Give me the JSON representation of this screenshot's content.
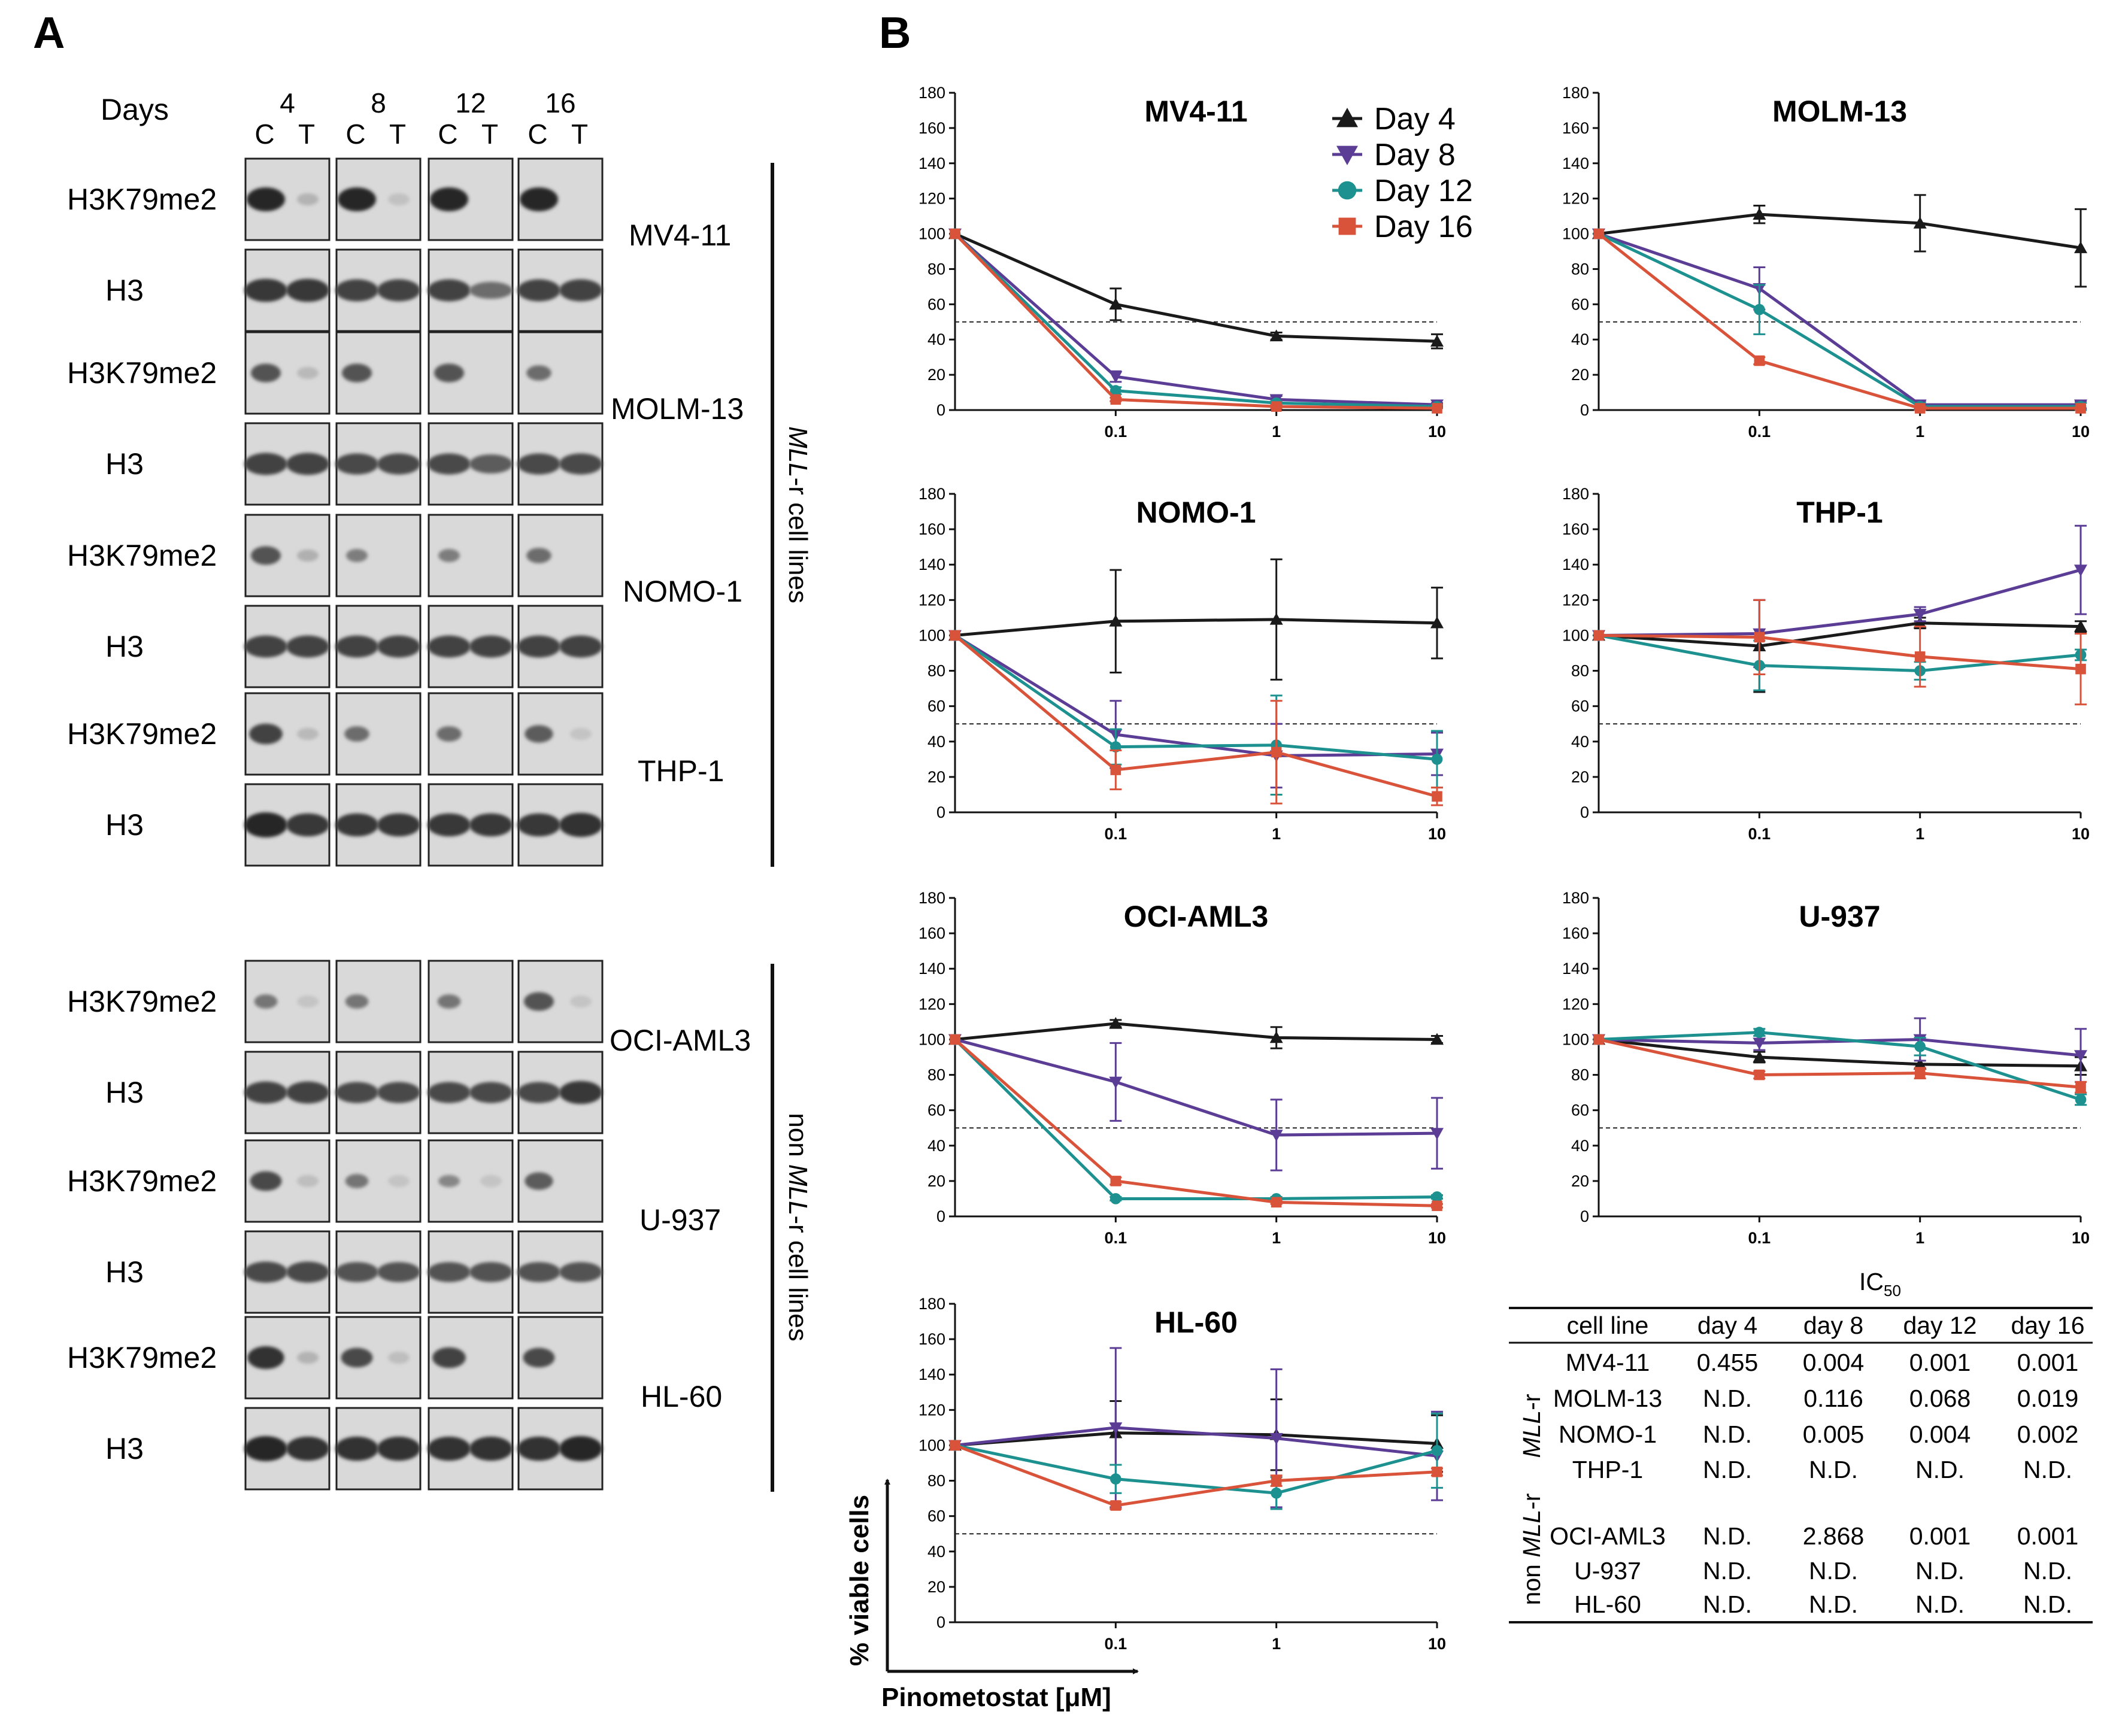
{
  "panel_labels": {
    "a": "A",
    "b": "B"
  },
  "blot": {
    "days_label": "Days",
    "days": [
      "4",
      "8",
      "12",
      "16"
    ],
    "ct": [
      "C",
      "T"
    ],
    "antibodies": {
      "mark": "H3K79me2",
      "total": "H3"
    },
    "lines": [
      {
        "name": "MV4-11",
        "mark": [
          1.0,
          0.18,
          1.0,
          0.1,
          1.0,
          0.05,
          1.0,
          0.05
        ],
        "total": [
          0.9,
          0.9,
          0.85,
          0.85,
          0.85,
          0.6,
          0.85,
          0.85
        ]
      },
      {
        "name": "MOLM-13",
        "mark": [
          0.75,
          0.15,
          0.75,
          0.05,
          0.75,
          0.05,
          0.6,
          0.05
        ],
        "total": [
          0.85,
          0.85,
          0.8,
          0.8,
          0.8,
          0.7,
          0.8,
          0.8
        ]
      },
      {
        "name": "NOMO-1",
        "mark": [
          0.75,
          0.2,
          0.5,
          0.05,
          0.5,
          0.05,
          0.6,
          0.05
        ],
        "total": [
          0.85,
          0.85,
          0.85,
          0.85,
          0.85,
          0.85,
          0.85,
          0.85
        ]
      },
      {
        "name": "THP-1",
        "mark": [
          0.85,
          0.15,
          0.6,
          0.05,
          0.6,
          0.05,
          0.7,
          0.08
        ],
        "total": [
          1.0,
          0.9,
          0.9,
          0.9,
          0.9,
          0.9,
          0.9,
          0.95
        ]
      },
      {
        "name": "OCI-AML3",
        "mark": [
          0.55,
          0.08,
          0.55,
          0.05,
          0.55,
          0.05,
          0.75,
          0.08
        ],
        "total": [
          0.85,
          0.85,
          0.8,
          0.8,
          0.8,
          0.8,
          0.8,
          0.9
        ]
      },
      {
        "name": "U-937",
        "mark": [
          0.8,
          0.12,
          0.55,
          0.08,
          0.45,
          0.08,
          0.7,
          0.05
        ],
        "total": [
          0.8,
          0.8,
          0.75,
          0.75,
          0.75,
          0.75,
          0.75,
          0.75
        ]
      },
      {
        "name": "HL-60",
        "mark": [
          0.95,
          0.18,
          0.8,
          0.12,
          0.85,
          0.05,
          0.8,
          0.05
        ],
        "total": [
          1.0,
          0.95,
          0.95,
          0.95,
          0.95,
          0.95,
          0.95,
          1.0
        ]
      }
    ],
    "group_labels": {
      "mll": {
        "gene": "MLL",
        "suffix": "-r",
        "rest": " cell lines"
      },
      "non": {
        "prefix": "non ",
        "gene": "MLL",
        "suffix": "-r",
        "rest": " cell lines"
      }
    }
  },
  "legend": [
    "Day 4",
    "Day 8",
    "Day 12",
    "Day 16"
  ],
  "colors": {
    "day4": "#1a1a1a",
    "day8": "#5b3d96",
    "day12": "#1c9190",
    "day16": "#d9533a"
  },
  "axes": {
    "y_ticks": [
      "0",
      "20",
      "40",
      "60",
      "80",
      "100",
      "120",
      "140",
      "160",
      "180"
    ],
    "x_ticks": [
      "0.1",
      "1",
      "10"
    ],
    "y_title": "% viable cells",
    "x_title": "Pinometostat [μM]"
  },
  "chart_data": [
    {
      "type": "line",
      "title": "MV4-11",
      "x": [
        0.01,
        0.1,
        1,
        10
      ],
      "xscale": "log",
      "ylim": [
        0,
        180
      ],
      "reference_line": 50,
      "series": [
        {
          "name": "Day 4",
          "values": [
            100,
            60,
            42,
            39
          ],
          "err": [
            0,
            9,
            2,
            4
          ]
        },
        {
          "name": "Day 8",
          "values": [
            100,
            19,
            6,
            3
          ],
          "err": [
            0,
            3,
            2,
            1
          ]
        },
        {
          "name": "Day 12",
          "values": [
            100,
            11,
            4,
            2
          ],
          "err": [
            0,
            2,
            1,
            1
          ]
        },
        {
          "name": "Day 16",
          "values": [
            100,
            6,
            2,
            1
          ],
          "err": [
            0,
            1,
            1,
            0
          ]
        }
      ]
    },
    {
      "type": "line",
      "title": "MOLM-13",
      "x": [
        0.01,
        0.1,
        1,
        10
      ],
      "xscale": "log",
      "ylim": [
        0,
        180
      ],
      "reference_line": 50,
      "series": [
        {
          "name": "Day 4",
          "values": [
            100,
            111,
            106,
            92
          ],
          "err": [
            0,
            5,
            16,
            22
          ]
        },
        {
          "name": "Day 8",
          "values": [
            100,
            69,
            3,
            3
          ],
          "err": [
            0,
            12,
            2,
            2
          ]
        },
        {
          "name": "Day 12",
          "values": [
            100,
            57,
            2,
            2
          ],
          "err": [
            0,
            14,
            2,
            2
          ]
        },
        {
          "name": "Day 16",
          "values": [
            100,
            28,
            1,
            1
          ],
          "err": [
            0,
            2,
            1,
            0
          ]
        }
      ]
    },
    {
      "type": "line",
      "title": "NOMO-1",
      "x": [
        0.01,
        0.1,
        1,
        10
      ],
      "xscale": "log",
      "ylim": [
        0,
        180
      ],
      "reference_line": 50,
      "series": [
        {
          "name": "Day 4",
          "values": [
            100,
            108,
            109,
            107
          ],
          "err": [
            0,
            29,
            34,
            20
          ]
        },
        {
          "name": "Day 8",
          "values": [
            100,
            44,
            32,
            33
          ],
          "err": [
            0,
            19,
            18,
            12
          ]
        },
        {
          "name": "Day 12",
          "values": [
            100,
            37,
            38,
            30
          ],
          "err": [
            0,
            10,
            28,
            16
          ]
        },
        {
          "name": "Day 16",
          "values": [
            100,
            24,
            34,
            9
          ],
          "err": [
            0,
            11,
            29,
            5
          ]
        }
      ]
    },
    {
      "type": "line",
      "title": "THP-1",
      "x": [
        0.01,
        0.1,
        1,
        10
      ],
      "xscale": "log",
      "ylim": [
        0,
        180
      ],
      "reference_line": 50,
      "series": [
        {
          "name": "Day 4",
          "values": [
            100,
            94,
            107,
            105
          ],
          "err": [
            0,
            26,
            3,
            3
          ]
        },
        {
          "name": "Day 8",
          "values": [
            100,
            101,
            112,
            137
          ],
          "err": [
            0,
            19,
            4,
            25
          ]
        },
        {
          "name": "Day 12",
          "values": [
            100,
            83,
            80,
            89
          ],
          "err": [
            0,
            14,
            5,
            3
          ]
        },
        {
          "name": "Day 16",
          "values": [
            100,
            99,
            88,
            81
          ],
          "err": [
            0,
            21,
            17,
            20
          ]
        }
      ]
    },
    {
      "type": "line",
      "title": "OCI-AML3",
      "x": [
        0.01,
        0.1,
        1,
        10
      ],
      "xscale": "log",
      "ylim": [
        0,
        180
      ],
      "reference_line": 50,
      "series": [
        {
          "name": "Day 4",
          "values": [
            100,
            109,
            101,
            100
          ],
          "err": [
            0,
            2,
            6,
            2
          ]
        },
        {
          "name": "Day 8",
          "values": [
            100,
            76,
            46,
            47
          ],
          "err": [
            0,
            22,
            20,
            20
          ]
        },
        {
          "name": "Day 12",
          "values": [
            100,
            10,
            10,
            11
          ],
          "err": [
            0,
            1,
            1,
            1
          ]
        },
        {
          "name": "Day 16",
          "values": [
            100,
            20,
            8,
            6
          ],
          "err": [
            0,
            2,
            1,
            1
          ]
        }
      ]
    },
    {
      "type": "line",
      "title": "U-937",
      "x": [
        0.01,
        0.1,
        1,
        10
      ],
      "xscale": "log",
      "ylim": [
        0,
        180
      ],
      "reference_line": 50,
      "series": [
        {
          "name": "Day 4",
          "values": [
            100,
            90,
            86,
            85
          ],
          "err": [
            0,
            3,
            5,
            5
          ]
        },
        {
          "name": "Day 8",
          "values": [
            100,
            98,
            100,
            91
          ],
          "err": [
            0,
            4,
            12,
            15
          ]
        },
        {
          "name": "Day 12",
          "values": [
            100,
            104,
            96,
            66
          ],
          "err": [
            0,
            2,
            5,
            3
          ]
        },
        {
          "name": "Day 16",
          "values": [
            100,
            80,
            81,
            73
          ],
          "err": [
            0,
            2,
            3,
            3
          ]
        }
      ]
    },
    {
      "type": "line",
      "title": "HL-60",
      "x": [
        0.01,
        0.1,
        1,
        10
      ],
      "xscale": "log",
      "ylim": [
        0,
        180
      ],
      "reference_line": 50,
      "series": [
        {
          "name": "Day 4",
          "values": [
            100,
            107,
            106,
            101
          ],
          "err": [
            0,
            18,
            20,
            16
          ]
        },
        {
          "name": "Day 8",
          "values": [
            100,
            110,
            104,
            94
          ],
          "err": [
            0,
            45,
            39,
            25
          ]
        },
        {
          "name": "Day 12",
          "values": [
            100,
            81,
            73,
            97
          ],
          "err": [
            0,
            8,
            9,
            21
          ]
        },
        {
          "name": "Day 16",
          "values": [
            100,
            66,
            80,
            85
          ],
          "err": [
            0,
            2,
            3,
            2
          ]
        }
      ]
    }
  ],
  "ic50_table": {
    "title_main": "IC",
    "title_sub": "50",
    "columns": [
      "cell line",
      "day 4",
      "day 8",
      "day 12",
      "day 16"
    ],
    "groups": [
      {
        "label": {
          "gene": "MLL",
          "suffix": "-r"
        },
        "rows": [
          [
            "MV4-11",
            "0.455",
            "0.004",
            "0.001",
            "0.001"
          ],
          [
            "MOLM-13",
            "N.D.",
            "0.116",
            "0.068",
            "0.019"
          ],
          [
            "NOMO-1",
            "N.D.",
            "0.005",
            "0.004",
            "0.002"
          ],
          [
            "THP-1",
            "N.D.",
            "N.D.",
            "N.D.",
            "N.D."
          ]
        ]
      },
      {
        "label": {
          "prefix": "non ",
          "gene": "MLL",
          "suffix": "-r"
        },
        "rows": [
          [
            "OCI-AML3",
            "N.D.",
            "2.868",
            "0.001",
            "0.001"
          ],
          [
            "U-937",
            "N.D.",
            "N.D.",
            "N.D.",
            "N.D."
          ],
          [
            "HL-60",
            "N.D.",
            "N.D.",
            "N.D.",
            "N.D."
          ]
        ]
      }
    ]
  }
}
